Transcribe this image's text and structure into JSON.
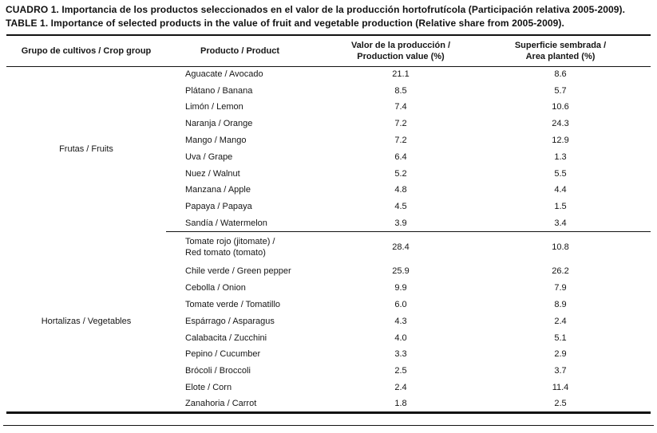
{
  "caption": {
    "line1_es": "CUADRO 1. Importancia de los productos seleccionados en el valor de la producción hortofrutícola (Participación relativa 2005-2009).",
    "line2_en": "TABLE 1. Importance of selected products in the value of fruit and vegetable production (Relative share from 2005-2009)."
  },
  "table": {
    "header": {
      "crop_group": "Grupo de cultivos / Crop group",
      "product": "Producto / Product",
      "production_value": [
        "Valor de la producción /",
        "Production value (%)"
      ],
      "area_planted": [
        "Superficie sembrada /",
        "Area planted (%)"
      ]
    },
    "groups": [
      {
        "group": "Frutas / Fruits",
        "rows": [
          {
            "product": "Aguacate / Avocado",
            "production_value_pct": "21.1",
            "area_planted_pct": "8.6"
          },
          {
            "product": "Plátano / Banana",
            "production_value_pct": "8.5",
            "area_planted_pct": "5.7"
          },
          {
            "product": "Limón / Lemon",
            "production_value_pct": "7.4",
            "area_planted_pct": "10.6"
          },
          {
            "product": "Naranja / Orange",
            "production_value_pct": "7.2",
            "area_planted_pct": "24.3"
          },
          {
            "product": "Mango / Mango",
            "production_value_pct": "7.2",
            "area_planted_pct": "12.9"
          },
          {
            "product": "Uva / Grape",
            "production_value_pct": "6.4",
            "area_planted_pct": "1.3"
          },
          {
            "product": "Nuez / Walnut",
            "production_value_pct": "5.2",
            "area_planted_pct": "5.5"
          },
          {
            "product": "Manzana / Apple",
            "production_value_pct": "4.8",
            "area_planted_pct": "4.4"
          },
          {
            "product": "Papaya / Papaya",
            "production_value_pct": "4.5",
            "area_planted_pct": "1.5"
          },
          {
            "product": "Sandía / Watermelon",
            "production_value_pct": "3.9",
            "area_planted_pct": "3.4"
          }
        ]
      },
      {
        "group": "Hortalizas / Vegetables",
        "rows": [
          {
            "product": [
              "Tomate rojo (jitomate) /",
              "Red tomato (tomato)"
            ],
            "production_value_pct": "28.4",
            "area_planted_pct": "10.8"
          },
          {
            "product": "Chile verde / Green pepper",
            "production_value_pct": "25.9",
            "area_planted_pct": "26.2"
          },
          {
            "product": "Cebolla / Onion",
            "production_value_pct": "9.9",
            "area_planted_pct": "7.9"
          },
          {
            "product": "Tomate verde / Tomatillo",
            "production_value_pct": "6.0",
            "area_planted_pct": "8.9"
          },
          {
            "product": "Espárrago / Asparagus",
            "production_value_pct": "4.3",
            "area_planted_pct": "2.4"
          },
          {
            "product": "Calabacita / Zucchini",
            "production_value_pct": "4.0",
            "area_planted_pct": "5.1"
          },
          {
            "product": "Pepino / Cucumber",
            "production_value_pct": "3.3",
            "area_planted_pct": "2.9"
          },
          {
            "product": "Brócoli / Broccoli",
            "production_value_pct": "2.5",
            "area_planted_pct": "3.7"
          },
          {
            "product": "Elote / Corn",
            "production_value_pct": "2.4",
            "area_planted_pct": "11.4"
          },
          {
            "product": "Zanahoria / Carrot",
            "production_value_pct": "1.8",
            "area_planted_pct": "2.5"
          }
        ]
      }
    ]
  }
}
